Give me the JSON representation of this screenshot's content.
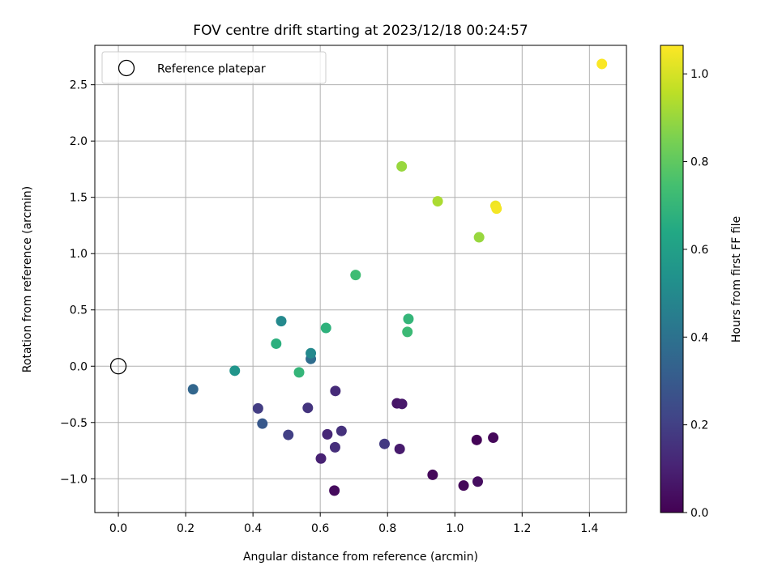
{
  "chart_data": {
    "type": "scatter",
    "title": "FOV centre drift starting at 2023/12/18 00:24:57",
    "xlabel": "Angular distance from reference (arcmin)",
    "ylabel": "Rotation from reference (arcmin)",
    "xlim": [
      -0.07,
      1.51
    ],
    "ylim": [
      -1.3,
      2.85
    ],
    "xticks": [
      0.0,
      0.2,
      0.4,
      0.6,
      0.8,
      1.0,
      1.2,
      1.4
    ],
    "yticks": [
      -1.0,
      -0.5,
      0.0,
      0.5,
      1.0,
      1.5,
      2.0,
      2.5
    ],
    "xtick_labels": [
      "0.0",
      "0.2",
      "0.4",
      "0.6",
      "0.8",
      "1.0",
      "1.2",
      "1.4"
    ],
    "ytick_labels": [
      "−1.0",
      "−0.5",
      "0.0",
      "0.5",
      "1.0",
      "1.5",
      "2.0",
      "2.5"
    ],
    "grid": true,
    "legend": {
      "placement": "top-left",
      "entries": [
        "Reference platepar"
      ]
    },
    "reference_point": {
      "x": 0.0,
      "y": 0.0,
      "marker": "open-circle"
    },
    "colorbar": {
      "label": "Hours from first FF file",
      "range": [
        0.0,
        1.065
      ],
      "ticks": [
        0.0,
        0.2,
        0.4,
        0.6,
        0.8,
        1.0
      ],
      "tick_labels": [
        "0.0",
        "0.2",
        "0.4",
        "0.6",
        "0.8",
        "1.0"
      ],
      "colormap": "viridis"
    },
    "points": [
      {
        "x": 0.642,
        "y": -1.105,
        "c": 0.03
      },
      {
        "x": 1.026,
        "y": -1.06,
        "c": 0.02
      },
      {
        "x": 1.068,
        "y": -1.025,
        "c": 0.04
      },
      {
        "x": 0.934,
        "y": -0.965,
        "c": 0.02
      },
      {
        "x": 1.065,
        "y": -0.655,
        "c": 0.01
      },
      {
        "x": 1.114,
        "y": -0.635,
        "c": 0.02
      },
      {
        "x": 0.836,
        "y": -0.735,
        "c": 0.08
      },
      {
        "x": 0.828,
        "y": -0.33,
        "c": 0.06
      },
      {
        "x": 0.843,
        "y": -0.335,
        "c": 0.07
      },
      {
        "x": 0.602,
        "y": -0.82,
        "c": 0.1
      },
      {
        "x": 0.621,
        "y": -0.605,
        "c": 0.12
      },
      {
        "x": 0.644,
        "y": -0.72,
        "c": 0.14
      },
      {
        "x": 0.663,
        "y": -0.575,
        "c": 0.15
      },
      {
        "x": 0.645,
        "y": -0.22,
        "c": 0.13
      },
      {
        "x": 0.563,
        "y": -0.37,
        "c": 0.16
      },
      {
        "x": 0.791,
        "y": -0.69,
        "c": 0.18
      },
      {
        "x": 0.505,
        "y": -0.61,
        "c": 0.2
      },
      {
        "x": 0.415,
        "y": -0.375,
        "c": 0.19
      },
      {
        "x": 0.428,
        "y": -0.51,
        "c": 0.29
      },
      {
        "x": 0.222,
        "y": -0.205,
        "c": 0.35
      },
      {
        "x": 0.572,
        "y": 0.065,
        "c": 0.38
      },
      {
        "x": 0.572,
        "y": 0.115,
        "c": 0.5
      },
      {
        "x": 0.484,
        "y": 0.4,
        "c": 0.5
      },
      {
        "x": 0.346,
        "y": -0.04,
        "c": 0.55
      },
      {
        "x": 0.537,
        "y": -0.055,
        "c": 0.7
      },
      {
        "x": 0.469,
        "y": 0.2,
        "c": 0.67
      },
      {
        "x": 0.617,
        "y": 0.34,
        "c": 0.68
      },
      {
        "x": 0.859,
        "y": 0.305,
        "c": 0.72
      },
      {
        "x": 0.862,
        "y": 0.42,
        "c": 0.7
      },
      {
        "x": 0.705,
        "y": 0.81,
        "c": 0.73
      },
      {
        "x": 1.072,
        "y": 1.145,
        "c": 0.9
      },
      {
        "x": 0.949,
        "y": 1.465,
        "c": 0.93
      },
      {
        "x": 0.842,
        "y": 1.775,
        "c": 0.9
      },
      {
        "x": 1.121,
        "y": 1.425,
        "c": 1.04
      },
      {
        "x": 1.124,
        "y": 1.4,
        "c": 1.05
      },
      {
        "x": 1.437,
        "y": 2.685,
        "c": 1.06
      }
    ]
  }
}
